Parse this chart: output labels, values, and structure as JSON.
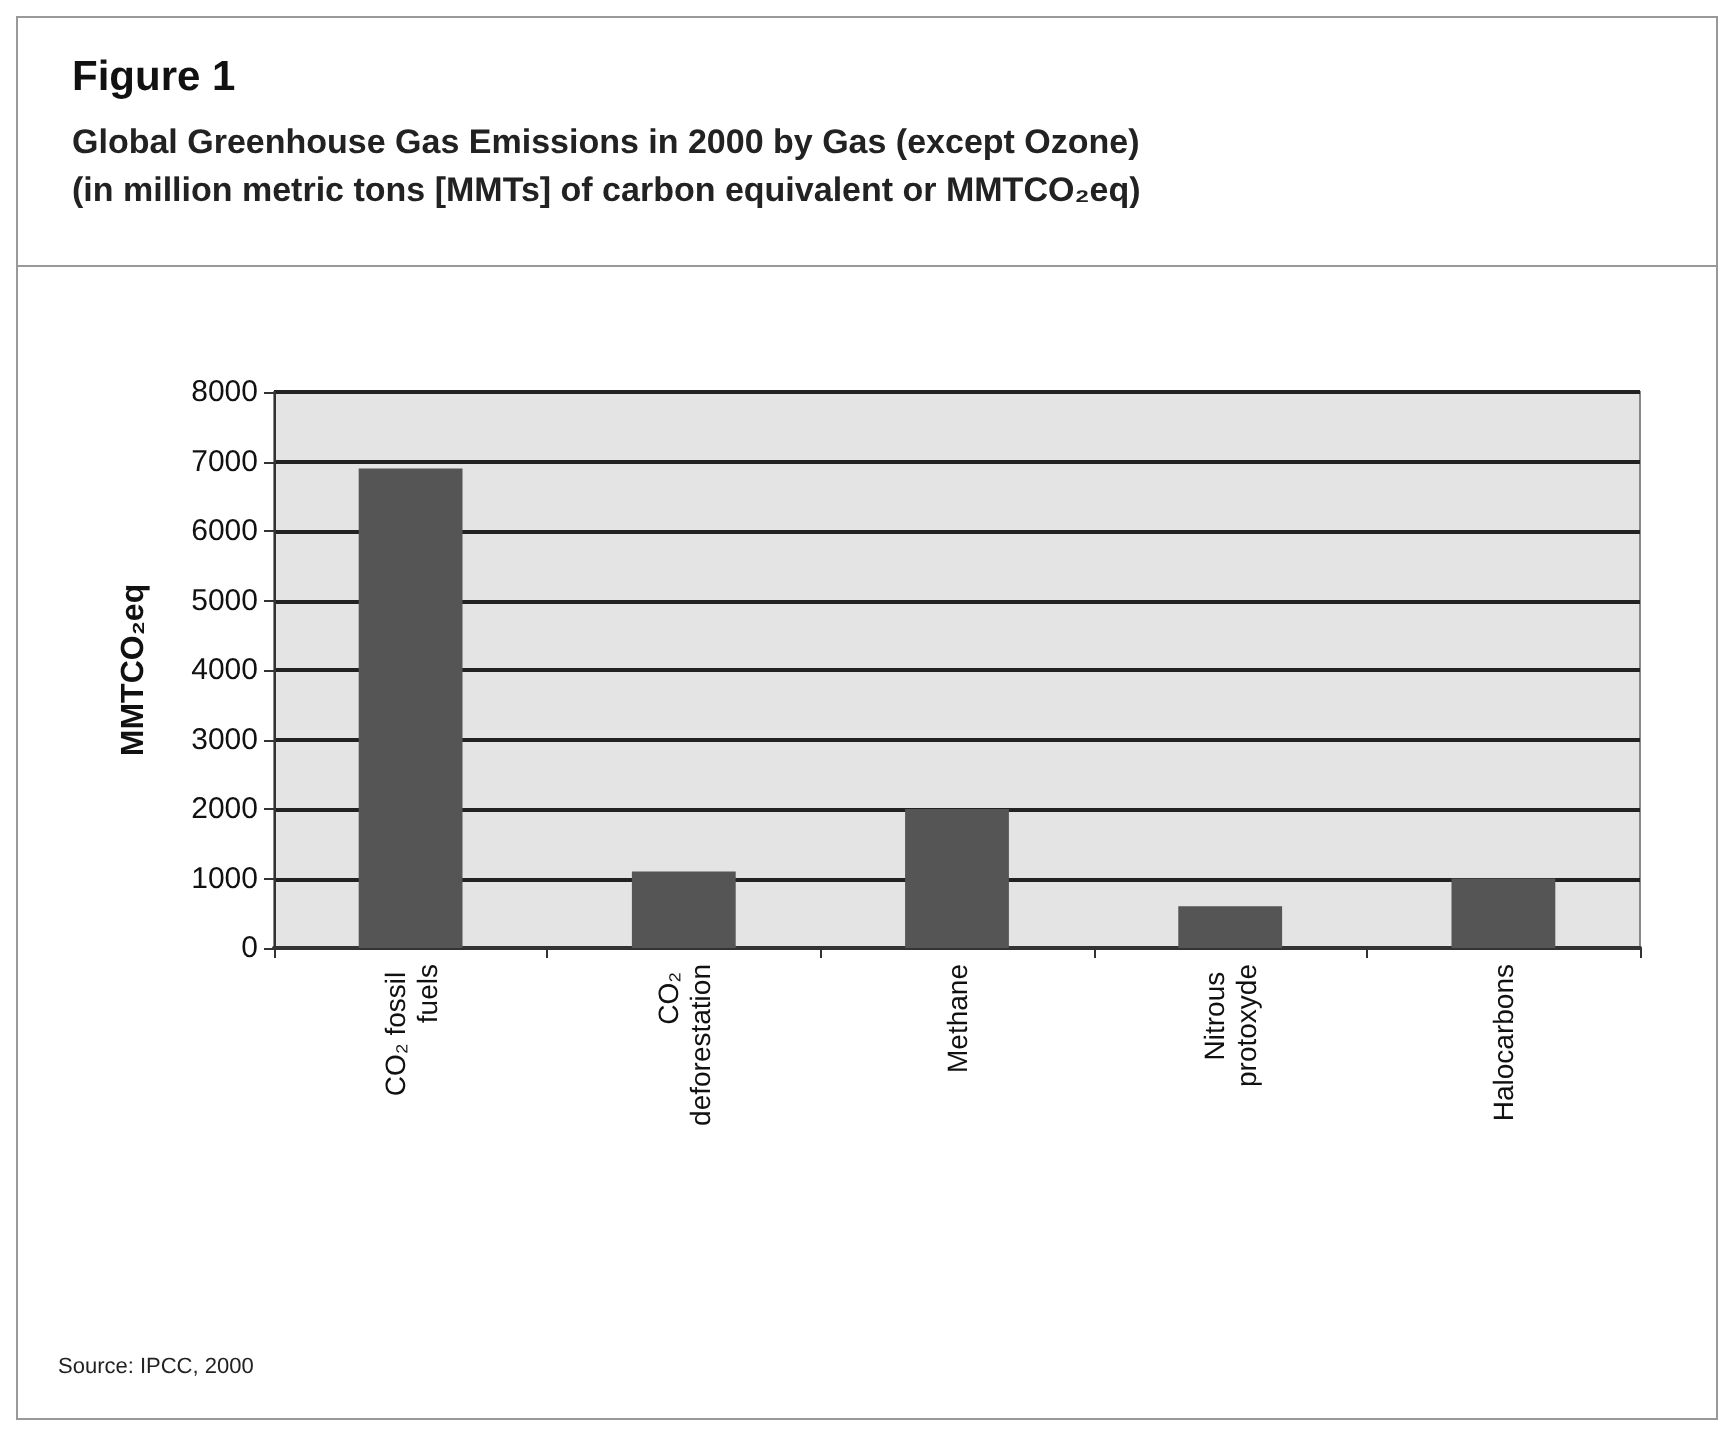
{
  "chart_data": {
    "type": "bar",
    "title": "Figure 1",
    "subtitle": "Global Greenhouse Gas Emissions in 2000 by Gas (except Ozone)\n(in million metric tons [MMTs] of carbon equivalent or MMTCO₂eq)",
    "ylabel": "MMTCO₂eq",
    "categories": [
      "CO₂ fossil fuels",
      "CO₂ deforestation",
      "Methane",
      "Nitrous protoxyde",
      "Halocarbons"
    ],
    "values": [
      6900,
      1100,
      2000,
      600,
      1000
    ],
    "color": "#555555",
    "ylim": [
      0,
      8000
    ],
    "yticks": [
      0,
      1000,
      2000,
      3000,
      4000,
      5000,
      6000,
      7000,
      8000
    ],
    "grid": true,
    "annotations": [
      "Source: IPCC, 2000"
    ]
  }
}
